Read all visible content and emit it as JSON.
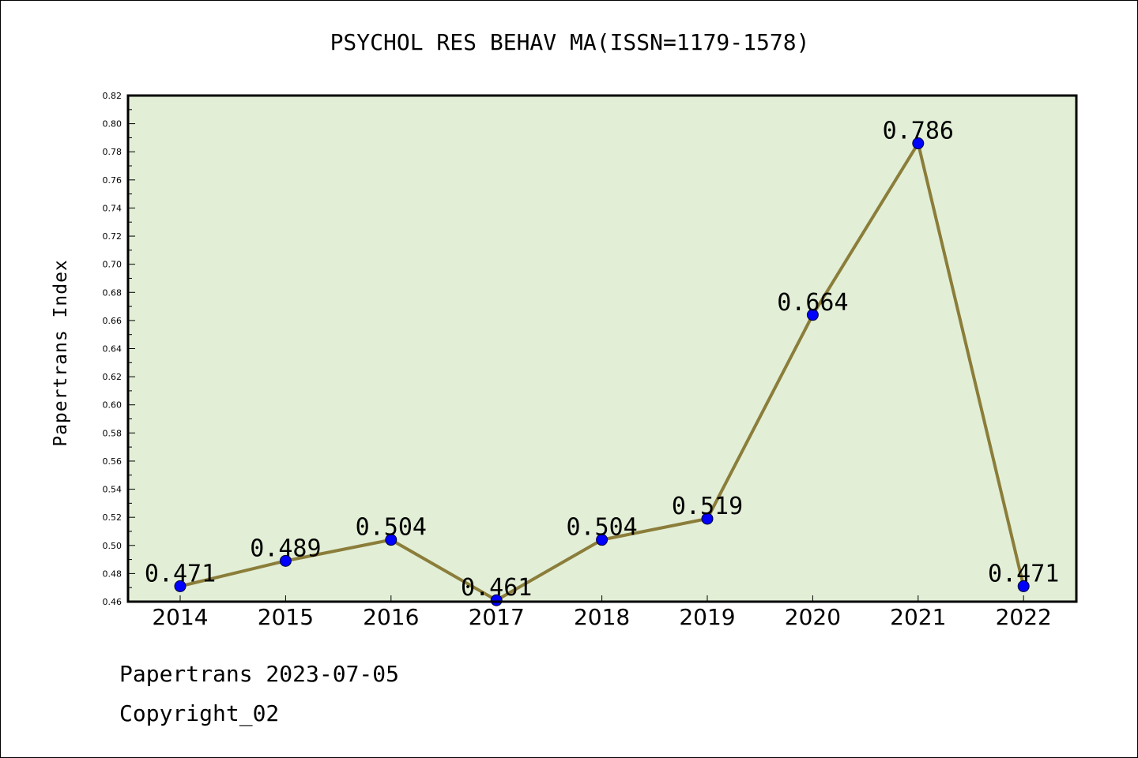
{
  "chart_data": {
    "type": "line",
    "title": "PSYCHOL RES BEHAV MA(ISSN=1179-1578)",
    "ylabel": "Papertrans Index",
    "xlabel": "",
    "categories": [
      "2014",
      "2015",
      "2016",
      "2017",
      "2018",
      "2019",
      "2020",
      "2021",
      "2022"
    ],
    "series": [
      {
        "values": [
          0.471,
          0.489,
          0.504,
          0.461,
          0.504,
          0.519,
          0.664,
          0.786,
          0.471
        ]
      }
    ],
    "data_labels": [
      "0.471",
      "0.489",
      "0.504",
      "0.461",
      "0.504",
      "0.519",
      "0.664",
      "0.786",
      "0.471"
    ],
    "ylim": [
      0.46,
      0.82
    ],
    "yticks": [
      "0.46",
      "0.48",
      "0.50",
      "0.52",
      "0.54",
      "0.56",
      "0.58",
      "0.60",
      "0.62",
      "0.64",
      "0.66",
      "0.68",
      "0.70",
      "0.72",
      "0.74",
      "0.76",
      "0.78",
      "0.80",
      "0.82"
    ],
    "grid": false,
    "colors": {
      "plot_background": "#e2efd6",
      "line": "#8b7d3a",
      "marker": "#0000ff"
    }
  },
  "footer": {
    "line1": "Papertrans 2023-07-05",
    "line2": "Copyright_02"
  }
}
